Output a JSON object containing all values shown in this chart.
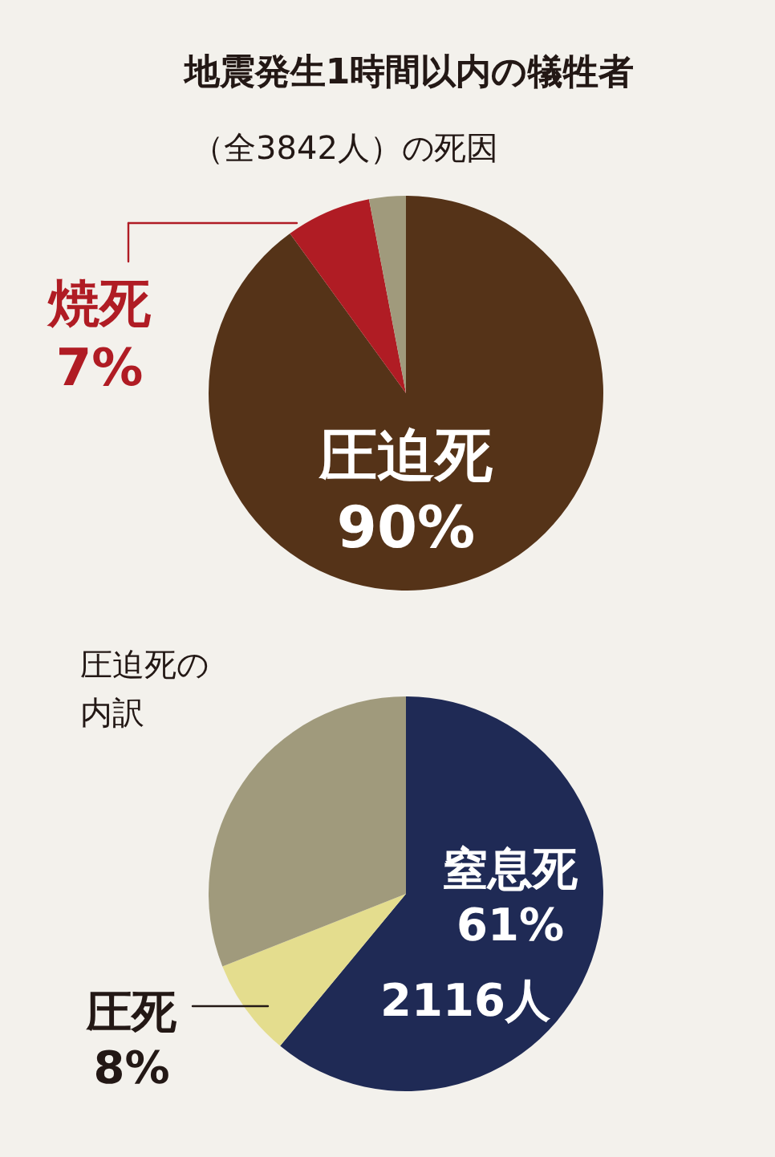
{
  "chart_data": [
    {
      "type": "pie",
      "title": "地震発生1時間以内の犠牲者",
      "subtitle": "（全3842人）の死因",
      "categories": [
        "圧迫死",
        "焼死",
        null
      ],
      "values": [
        90,
        7,
        3
      ],
      "colors": [
        "#553318",
        "#b01c24",
        "#a09a7c"
      ],
      "value_labels": [
        "90%",
        "7%",
        null
      ]
    },
    {
      "type": "pie",
      "title": "圧迫死の内訳",
      "categories": [
        "窒息死",
        "圧死",
        null
      ],
      "values": [
        61,
        8,
        31
      ],
      "colors": [
        "#1f2a55",
        "#e4dd8e",
        "#a09a7c"
      ],
      "value_labels": [
        "61%",
        "8%",
        null
      ],
      "annotations": [
        "2116人"
      ]
    }
  ]
}
